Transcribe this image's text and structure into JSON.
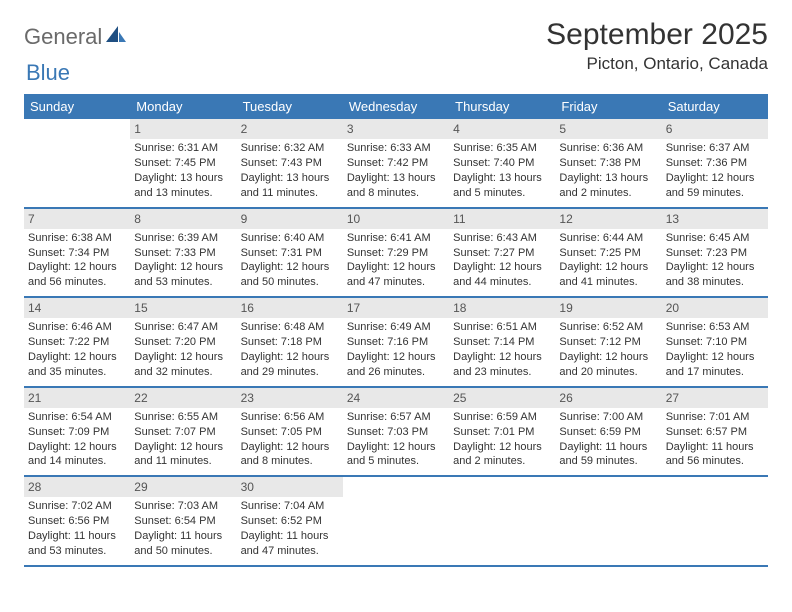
{
  "logo": {
    "text_general": "General",
    "text_blue": "Blue"
  },
  "title": "September 2025",
  "location": "Picton, Ontario, Canada",
  "day_headers": [
    "Sunday",
    "Monday",
    "Tuesday",
    "Wednesday",
    "Thursday",
    "Friday",
    "Saturday"
  ],
  "colors": {
    "header_bar": "#3a78b5",
    "header_text": "#ffffff",
    "daynum_bg": "#e8e8e8",
    "rule": "#3a78b5",
    "text": "#333333",
    "logo_gray": "#6a6a6a",
    "logo_blue": "#3a78b5"
  },
  "weeks": [
    [
      {
        "n": "",
        "sun": "",
        "set": "",
        "dl": ""
      },
      {
        "n": "1",
        "sun": "Sunrise: 6:31 AM",
        "set": "Sunset: 7:45 PM",
        "dl": "Daylight: 13 hours and 13 minutes."
      },
      {
        "n": "2",
        "sun": "Sunrise: 6:32 AM",
        "set": "Sunset: 7:43 PM",
        "dl": "Daylight: 13 hours and 11 minutes."
      },
      {
        "n": "3",
        "sun": "Sunrise: 6:33 AM",
        "set": "Sunset: 7:42 PM",
        "dl": "Daylight: 13 hours and 8 minutes."
      },
      {
        "n": "4",
        "sun": "Sunrise: 6:35 AM",
        "set": "Sunset: 7:40 PM",
        "dl": "Daylight: 13 hours and 5 minutes."
      },
      {
        "n": "5",
        "sun": "Sunrise: 6:36 AM",
        "set": "Sunset: 7:38 PM",
        "dl": "Daylight: 13 hours and 2 minutes."
      },
      {
        "n": "6",
        "sun": "Sunrise: 6:37 AM",
        "set": "Sunset: 7:36 PM",
        "dl": "Daylight: 12 hours and 59 minutes."
      }
    ],
    [
      {
        "n": "7",
        "sun": "Sunrise: 6:38 AM",
        "set": "Sunset: 7:34 PM",
        "dl": "Daylight: 12 hours and 56 minutes."
      },
      {
        "n": "8",
        "sun": "Sunrise: 6:39 AM",
        "set": "Sunset: 7:33 PM",
        "dl": "Daylight: 12 hours and 53 minutes."
      },
      {
        "n": "9",
        "sun": "Sunrise: 6:40 AM",
        "set": "Sunset: 7:31 PM",
        "dl": "Daylight: 12 hours and 50 minutes."
      },
      {
        "n": "10",
        "sun": "Sunrise: 6:41 AM",
        "set": "Sunset: 7:29 PM",
        "dl": "Daylight: 12 hours and 47 minutes."
      },
      {
        "n": "11",
        "sun": "Sunrise: 6:43 AM",
        "set": "Sunset: 7:27 PM",
        "dl": "Daylight: 12 hours and 44 minutes."
      },
      {
        "n": "12",
        "sun": "Sunrise: 6:44 AM",
        "set": "Sunset: 7:25 PM",
        "dl": "Daylight: 12 hours and 41 minutes."
      },
      {
        "n": "13",
        "sun": "Sunrise: 6:45 AM",
        "set": "Sunset: 7:23 PM",
        "dl": "Daylight: 12 hours and 38 minutes."
      }
    ],
    [
      {
        "n": "14",
        "sun": "Sunrise: 6:46 AM",
        "set": "Sunset: 7:22 PM",
        "dl": "Daylight: 12 hours and 35 minutes."
      },
      {
        "n": "15",
        "sun": "Sunrise: 6:47 AM",
        "set": "Sunset: 7:20 PM",
        "dl": "Daylight: 12 hours and 32 minutes."
      },
      {
        "n": "16",
        "sun": "Sunrise: 6:48 AM",
        "set": "Sunset: 7:18 PM",
        "dl": "Daylight: 12 hours and 29 minutes."
      },
      {
        "n": "17",
        "sun": "Sunrise: 6:49 AM",
        "set": "Sunset: 7:16 PM",
        "dl": "Daylight: 12 hours and 26 minutes."
      },
      {
        "n": "18",
        "sun": "Sunrise: 6:51 AM",
        "set": "Sunset: 7:14 PM",
        "dl": "Daylight: 12 hours and 23 minutes."
      },
      {
        "n": "19",
        "sun": "Sunrise: 6:52 AM",
        "set": "Sunset: 7:12 PM",
        "dl": "Daylight: 12 hours and 20 minutes."
      },
      {
        "n": "20",
        "sun": "Sunrise: 6:53 AM",
        "set": "Sunset: 7:10 PM",
        "dl": "Daylight: 12 hours and 17 minutes."
      }
    ],
    [
      {
        "n": "21",
        "sun": "Sunrise: 6:54 AM",
        "set": "Sunset: 7:09 PM",
        "dl": "Daylight: 12 hours and 14 minutes."
      },
      {
        "n": "22",
        "sun": "Sunrise: 6:55 AM",
        "set": "Sunset: 7:07 PM",
        "dl": "Daylight: 12 hours and 11 minutes."
      },
      {
        "n": "23",
        "sun": "Sunrise: 6:56 AM",
        "set": "Sunset: 7:05 PM",
        "dl": "Daylight: 12 hours and 8 minutes."
      },
      {
        "n": "24",
        "sun": "Sunrise: 6:57 AM",
        "set": "Sunset: 7:03 PM",
        "dl": "Daylight: 12 hours and 5 minutes."
      },
      {
        "n": "25",
        "sun": "Sunrise: 6:59 AM",
        "set": "Sunset: 7:01 PM",
        "dl": "Daylight: 12 hours and 2 minutes."
      },
      {
        "n": "26",
        "sun": "Sunrise: 7:00 AM",
        "set": "Sunset: 6:59 PM",
        "dl": "Daylight: 11 hours and 59 minutes."
      },
      {
        "n": "27",
        "sun": "Sunrise: 7:01 AM",
        "set": "Sunset: 6:57 PM",
        "dl": "Daylight: 11 hours and 56 minutes."
      }
    ],
    [
      {
        "n": "28",
        "sun": "Sunrise: 7:02 AM",
        "set": "Sunset: 6:56 PM",
        "dl": "Daylight: 11 hours and 53 minutes."
      },
      {
        "n": "29",
        "sun": "Sunrise: 7:03 AM",
        "set": "Sunset: 6:54 PM",
        "dl": "Daylight: 11 hours and 50 minutes."
      },
      {
        "n": "30",
        "sun": "Sunrise: 7:04 AM",
        "set": "Sunset: 6:52 PM",
        "dl": "Daylight: 11 hours and 47 minutes."
      },
      {
        "n": "",
        "sun": "",
        "set": "",
        "dl": ""
      },
      {
        "n": "",
        "sun": "",
        "set": "",
        "dl": ""
      },
      {
        "n": "",
        "sun": "",
        "set": "",
        "dl": ""
      },
      {
        "n": "",
        "sun": "",
        "set": "",
        "dl": ""
      }
    ]
  ]
}
